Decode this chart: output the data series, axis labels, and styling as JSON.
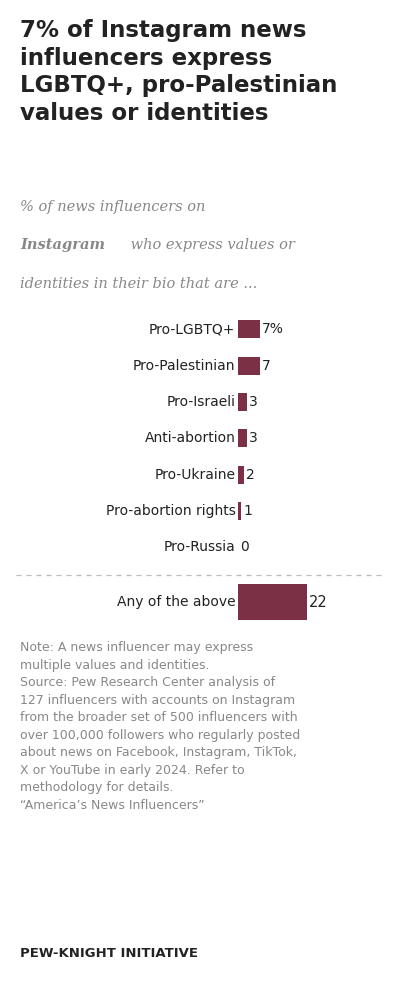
{
  "title": "7% of Instagram news\ninfluencers express\nLGBTQ+, pro-Palestinian\nvalues or identities",
  "categories": [
    "Pro-LGBTQ+",
    "Pro-Palestinian",
    "Pro-Israeli",
    "Anti-abortion",
    "Pro-Ukraine",
    "Pro-abortion rights",
    "Pro-Russia"
  ],
  "values": [
    7,
    7,
    3,
    3,
    2,
    1,
    0
  ],
  "value_labels": [
    "7%",
    "7",
    "3",
    "3",
    "2",
    "1",
    "0"
  ],
  "any_above_label": "Any of the above",
  "any_above_value": 22,
  "bar_color": "#7B3045",
  "note_text": "Note: A news influencer may express\nmultiple values and identities.\nSource: Pew Research Center analysis of\n127 influencers with accounts on Instagram\nfrom the broader set of 500 influencers with\nover 100,000 followers who regularly posted\nabout news on Facebook, Instagram, TikTok,\nX or YouTube in early 2024. Refer to\nmethodology for details.\n“America’s News Influencers”",
  "footer": "PEW-KNIGHT INITIATIVE",
  "bg_color": "#FFFFFF",
  "text_color": "#222222",
  "note_color": "#888888",
  "subtitle_color": "#888888",
  "xlim": [
    0,
    28
  ]
}
